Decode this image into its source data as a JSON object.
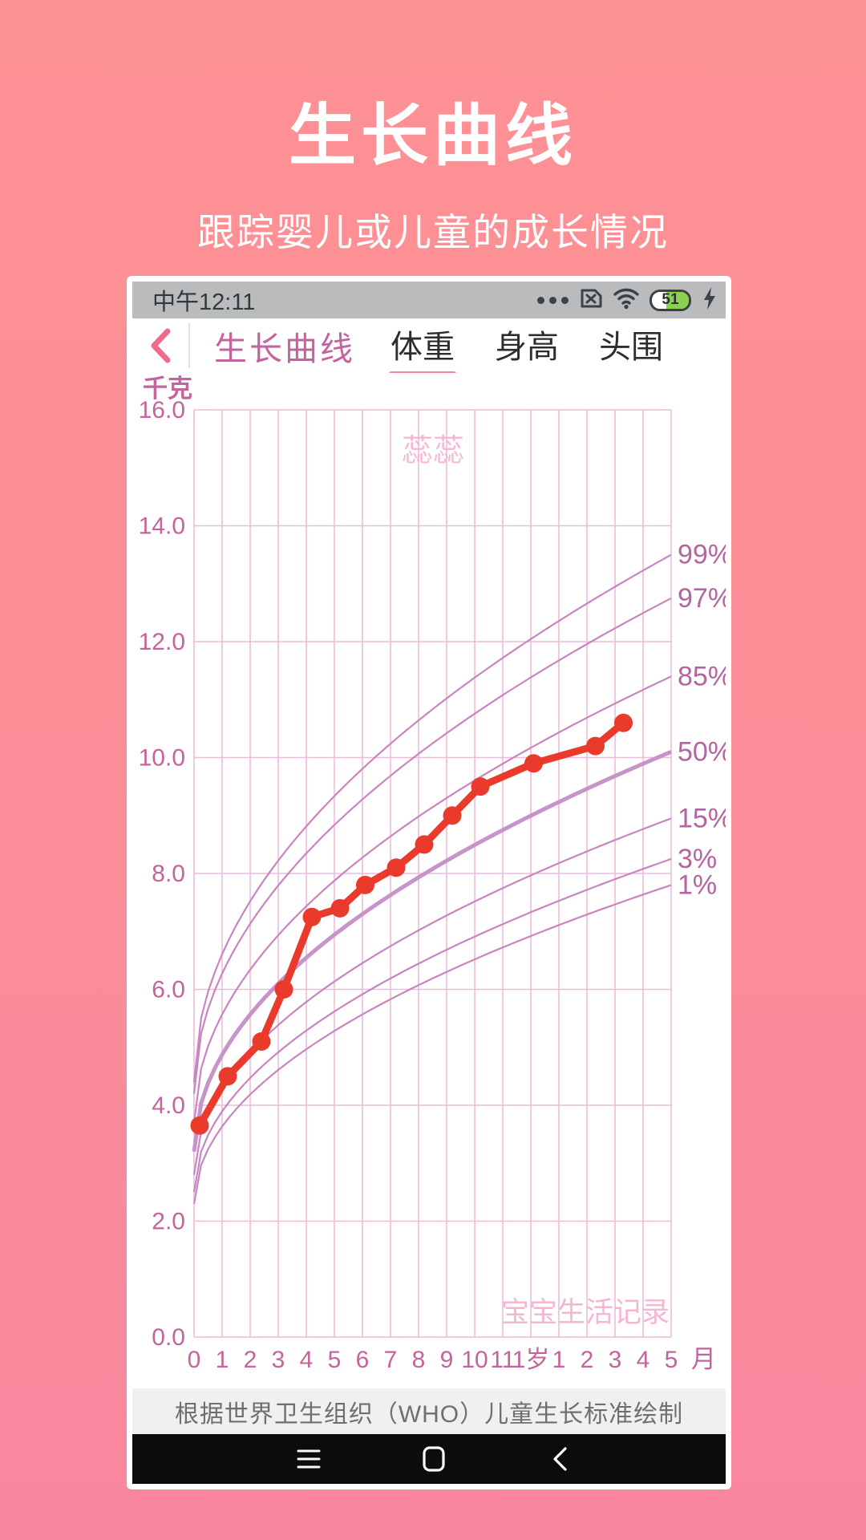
{
  "hero": {
    "title": "生长曲线",
    "subtitle": "跟踪婴儿或儿童的成长情况"
  },
  "statusbar": {
    "time": "中午12:11",
    "battery_percent": "51",
    "icon_names": [
      "more-dots-icon",
      "sim-missing-icon",
      "wifi-icon",
      "battery-icon",
      "charging-flash-icon"
    ]
  },
  "appnav": {
    "title": "生长曲线",
    "tabs": [
      {
        "label": "体重",
        "active": true
      },
      {
        "label": "身高",
        "active": false
      },
      {
        "label": "头围",
        "active": false
      }
    ]
  },
  "chart_data": {
    "type": "line",
    "unit_label": "千克",
    "month_unit_label": "月",
    "watermark_top": "蕊蕊",
    "watermark_bottom": "宝宝生活记录",
    "y_ticks": [
      "16.0",
      "14.0",
      "12.0",
      "10.0",
      "8.0",
      "6.0",
      "4.0",
      "2.0",
      "0.0"
    ],
    "ylim": [
      0,
      16
    ],
    "x_ticks": [
      "0",
      "1",
      "2",
      "3",
      "4",
      "5",
      "6",
      "7",
      "8",
      "9",
      "10",
      "11",
      "1岁",
      "1",
      "2",
      "3",
      "4",
      "5"
    ],
    "xlim_months": [
      0,
      17
    ],
    "grid": true,
    "measurements_kg_by_month": [
      [
        0.2,
        3.65
      ],
      [
        1.2,
        4.5
      ],
      [
        2.4,
        5.1
      ],
      [
        3.2,
        6.0
      ],
      [
        4.2,
        7.25
      ],
      [
        5.2,
        7.4
      ],
      [
        6.1,
        7.8
      ],
      [
        7.2,
        8.1
      ],
      [
        8.2,
        8.5
      ],
      [
        9.2,
        9.0
      ],
      [
        10.2,
        9.5
      ],
      [
        12.1,
        9.9
      ],
      [
        14.3,
        10.2
      ],
      [
        15.3,
        10.6
      ]
    ],
    "percentile_curves": [
      {
        "label": "99%",
        "birth_kg": 4.4,
        "end_kg": 13.5,
        "emphasized": false
      },
      {
        "label": "97%",
        "birth_kg": 4.2,
        "end_kg": 12.75,
        "emphasized": false
      },
      {
        "label": "85%",
        "birth_kg": 3.7,
        "end_kg": 11.4,
        "emphasized": false
      },
      {
        "label": "50%",
        "birth_kg": 3.2,
        "end_kg": 10.1,
        "emphasized": true
      },
      {
        "label": "15%",
        "birth_kg": 2.8,
        "end_kg": 8.95,
        "emphasized": false
      },
      {
        "label": "3%",
        "birth_kg": 2.5,
        "end_kg": 8.25,
        "emphasized": false
      },
      {
        "label": "1%",
        "birth_kg": 2.3,
        "end_kg": 7.8,
        "emphasized": false
      }
    ]
  },
  "footer": {
    "source_note": "根据世界卫生组织（WHO）儿童生长标准绘制"
  },
  "android_nav": {
    "icon_names": [
      "menu-icon",
      "home-icon",
      "back-icon"
    ]
  },
  "colors": {
    "background_top": "#fc9193",
    "background_bottom": "#f9869f",
    "statusbar_bg": "#b9bbbd",
    "battery_green": "#8ed150",
    "app_accent_pink": "#f5849b",
    "back_chevron_pink": "#ee6b8d",
    "app_title_mauve": "#c4639c",
    "grid_pink": "#ecbcdc",
    "axis_label_mauve": "#c4639c",
    "percentile_curve": "#ca84bf",
    "percentile_label": "#b4659f",
    "data_red": "#e93a2b",
    "watermark_pink": "#f5afcd",
    "who_bar_bg": "#f0f0f0",
    "android_nav_bg": "#0c0c0c"
  }
}
